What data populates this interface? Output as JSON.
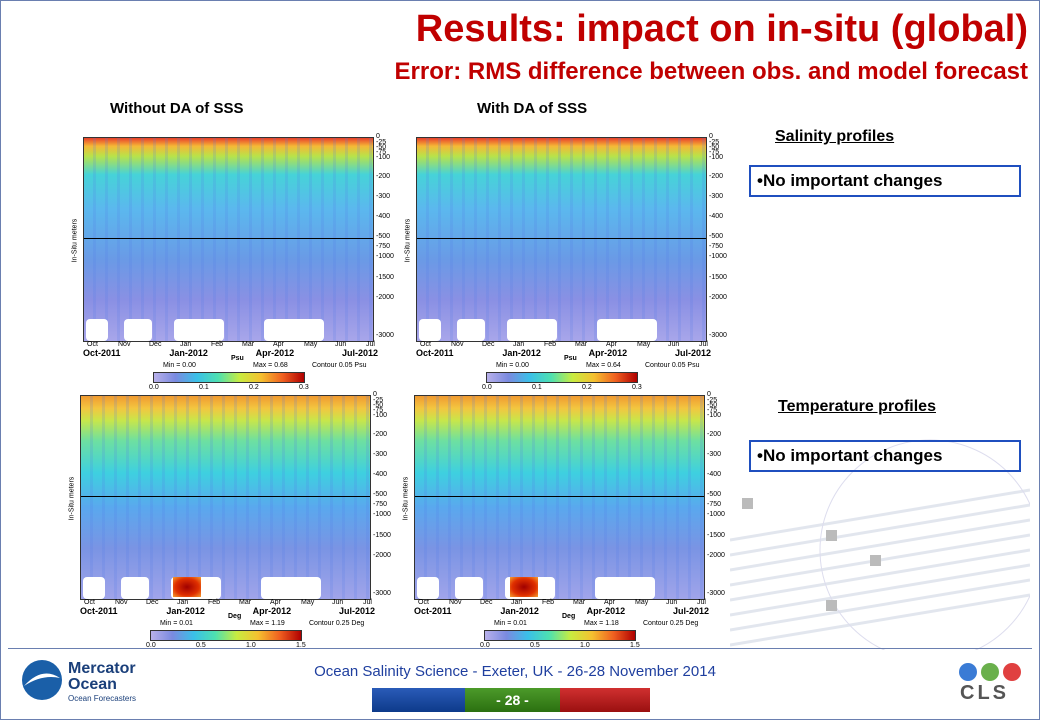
{
  "header": {
    "title": "Results: impact on in-situ (global)",
    "subtitle": "Error: RMS difference between obs. and model forecast"
  },
  "columns": [
    "Without DA of SSS",
    "With DA of SSS"
  ],
  "panels": [
    {
      "min": "Min = 0.00",
      "max": "Max = 0.68",
      "unit": "Psu",
      "contour": "Contour 0.05 Psu",
      "colorbar": [
        "0.0",
        "0.1",
        "0.2",
        "0.3"
      ]
    },
    {
      "min": "Min = 0.00",
      "max": "Max = 0.64",
      "unit": "Psu",
      "contour": "Contour 0.05 Psu",
      "colorbar": [
        "0.0",
        "0.1",
        "0.2",
        "0.3"
      ]
    },
    {
      "min": "Min = 0.01",
      "max": "Max = 1.19",
      "unit": "Deg",
      "contour": "Contour 0.25 Deg",
      "colorbar": [
        "0.0",
        "0.5",
        "1.0",
        "1.5"
      ]
    },
    {
      "min": "Min = 0.01",
      "max": "Max = 1.18",
      "unit": "Deg",
      "contour": "Contour 0.25 Deg",
      "colorbar": [
        "0.0",
        "0.5",
        "1.0",
        "1.5"
      ]
    }
  ],
  "time_axis": {
    "months": [
      "Oct",
      "Nov",
      "Dec",
      "Jan",
      "Feb",
      "Mar",
      "Apr",
      "May",
      "Jun",
      "Jul"
    ],
    "major": [
      "Oct-2011",
      "Jan-2012",
      "Apr-2012",
      "Jul-2012"
    ]
  },
  "depth_axis": {
    "label": "In-Situ meters",
    "ticks": [
      "0",
      "-25",
      "-50",
      "-75",
      "-100",
      "-200",
      "-300",
      "-400",
      "-500",
      "-750",
      "-1000",
      "-1500",
      "-2000",
      "-3000"
    ]
  },
  "notes": [
    {
      "heading": "Salinity profiles",
      "text": "•No important changes"
    },
    {
      "heading": "Temperature profiles",
      "text": "•No important changes"
    }
  ],
  "footer": {
    "conference": "Ocean Salinity Science - Exeter, UK - 26-28 November 2014",
    "page": "- 28 -",
    "logo_left": [
      "Mercator",
      "Ocean",
      "Ocean Forecasters"
    ],
    "logo_right": "CLS"
  }
}
